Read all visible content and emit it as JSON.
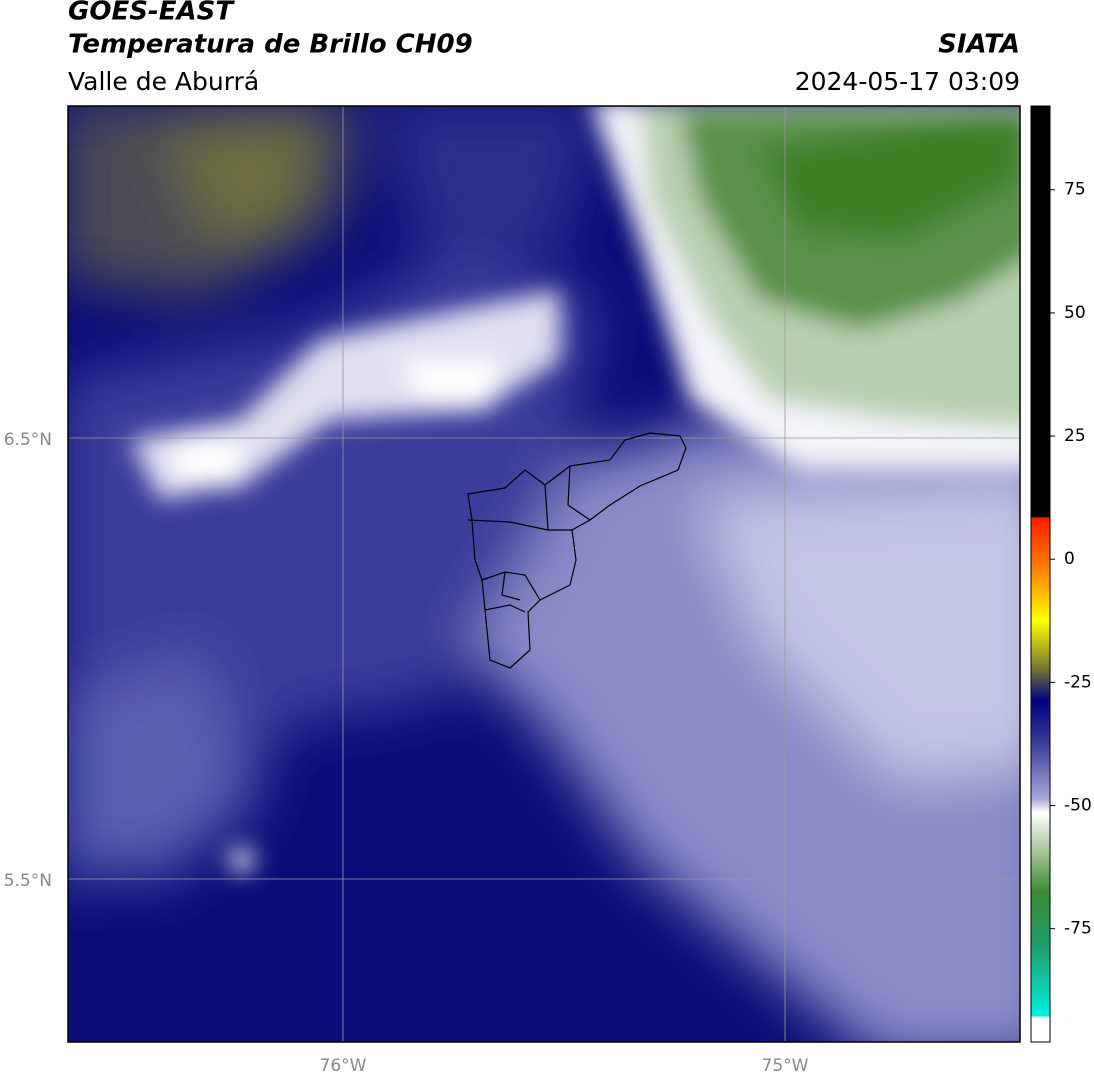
{
  "header": {
    "title": "GOES-EAST",
    "subtitle": "Temperatura de Brillo CH09",
    "region": "Valle de Aburrá",
    "source": "SIATA",
    "datetime": "2024-05-17 03:09"
  },
  "map": {
    "lon_labels": [
      "76°W",
      "75°W"
    ],
    "lat_labels": [
      "6.5°N",
      "5.5°N"
    ]
  },
  "colorbar": {
    "lim": [
      -98,
      92
    ],
    "ticks": [
      75,
      50,
      25,
      0,
      -25,
      -50,
      -75
    ]
  }
}
